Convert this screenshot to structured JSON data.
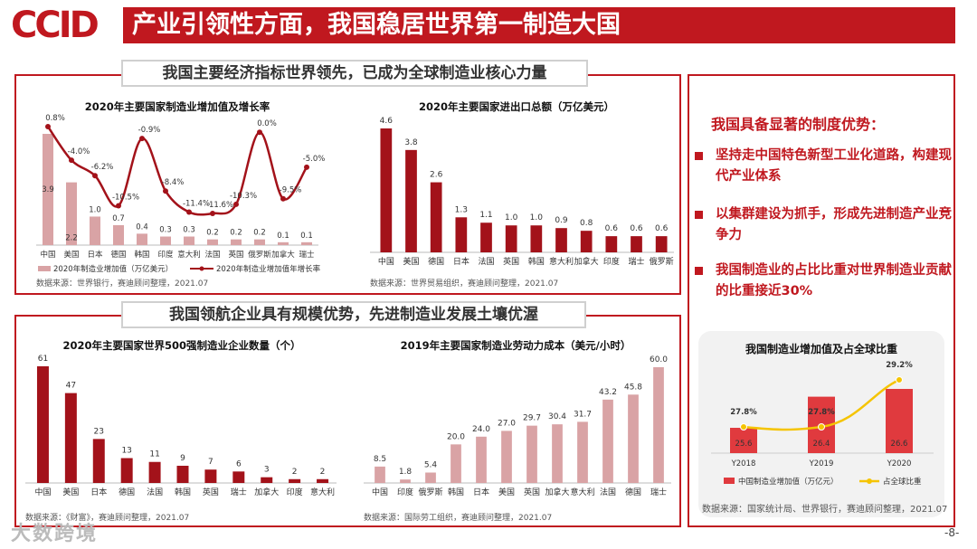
{
  "brand": {
    "logo_text": "CCID",
    "accent": "#c0181f",
    "bar_light": "#d9a3a5"
  },
  "header": {
    "title": "产业引领性方面，我国稳居世界第一制造大国"
  },
  "sections": {
    "top_label": "我国主要经济指标世界领先，已成为全球制造业核心力量",
    "bottom_label": "我国领航企业具有规模优势，先进制造业发展土壤优渥"
  },
  "right_panel": {
    "title": "我国具备显著的制度优势：",
    "bullets": [
      "坚持走中国特色新型工业化道路，构建现代产业体系",
      "以集群建设为抓手，形成先进制造产业竞争力",
      "我国制造业的占比比重对世界制造业贡献的比重接近30%"
    ]
  },
  "page_number": "-8-",
  "watermark": "大数跨境",
  "chart_data": [
    {
      "id": "chart1",
      "type": "bar+line",
      "title": "2020年主要国家制造业增加值及增长率",
      "categories": [
        "中国",
        "美国",
        "日本",
        "德国",
        "韩国",
        "印度",
        "意大利",
        "法国",
        "英国",
        "俄罗斯",
        "加拿大",
        "瑞士"
      ],
      "series": [
        {
          "name": "2020年制造业增加值（万亿美元）",
          "type": "bar",
          "values": [
            3.9,
            2.2,
            1.0,
            0.7,
            0.4,
            0.3,
            0.3,
            0.2,
            0.2,
            0.2,
            0.1,
            0.1
          ],
          "labels": [
            "3.9",
            "2.2",
            "1.0",
            "0.7",
            "0.4",
            "0.3",
            "0.3",
            "0.2",
            "0.2",
            "0.2",
            "0.1",
            "0.1"
          ]
        },
        {
          "name": "2020年制造业增加值年增长率",
          "type": "line",
          "values": [
            0.8,
            -4.0,
            -6.2,
            -10.5,
            -0.9,
            -8.4,
            -11.4,
            -11.6,
            -10.3,
            0.0,
            -9.5,
            -5.0
          ],
          "labels": [
            "0.8%",
            "-4.0%",
            "-6.2%",
            "-10.5%",
            "-0.9%",
            "-8.4%",
            "-11.4%",
            "-11.6%",
            "-10.3%",
            "0.0%",
            "-9.5%",
            "-5.0%"
          ]
        }
      ],
      "source": "数据来源：世界银行，赛迪顾问整理，2021.07"
    },
    {
      "id": "chart2",
      "type": "bar",
      "title": "2020年主要国家进出口总额（万亿美元）",
      "categories": [
        "中国",
        "美国",
        "德国",
        "日本",
        "法国",
        "英国",
        "韩国",
        "意大利",
        "加拿大",
        "印度",
        "瑞士",
        "俄罗斯"
      ],
      "values": [
        4.6,
        3.8,
        2.6,
        1.3,
        1.1,
        1.0,
        1.0,
        0.9,
        0.8,
        0.6,
        0.6,
        0.6
      ],
      "labels": [
        "4.6",
        "3.8",
        "2.6",
        "1.3",
        "1.1",
        "1.0",
        "1.0",
        "0.9",
        "0.8",
        "0.6",
        "0.6",
        "0.6"
      ],
      "source": "数据来源：世界贸易组织，赛迪顾问整理，2021.07"
    },
    {
      "id": "chart3",
      "type": "bar",
      "title": "2020年主要国家世界500强制造业企业数量（个）",
      "categories": [
        "中国",
        "美国",
        "日本",
        "德国",
        "法国",
        "韩国",
        "英国",
        "瑞士",
        "加拿大",
        "印度",
        "意大利"
      ],
      "values": [
        61,
        47,
        23,
        13,
        11,
        9,
        7,
        6,
        3,
        2,
        2
      ],
      "labels": [
        "61",
        "47",
        "23",
        "13",
        "11",
        "9",
        "7",
        "6",
        "3",
        "2",
        "2"
      ],
      "source": "数据来源：《财富》，赛迪顾问整理，2021.07"
    },
    {
      "id": "chart4",
      "type": "bar",
      "title": "2019年主要国家制造业劳动力成本（美元/小时）",
      "categories": [
        "中国",
        "印度",
        "俄罗斯",
        "韩国",
        "日本",
        "美国",
        "英国",
        "加拿大",
        "意大利",
        "法国",
        "德国",
        "瑞士"
      ],
      "values": [
        8.5,
        1.8,
        5.4,
        20.0,
        24.0,
        27.0,
        29.7,
        30.4,
        31.7,
        43.2,
        45.8,
        60.0
      ],
      "labels": [
        "8.5",
        "1.8",
        "5.4",
        "20.0",
        "24.0",
        "27.0",
        "29.7",
        "30.4",
        "31.7",
        "43.2",
        "45.8",
        "60.0"
      ],
      "source": "数据来源：国际劳工组织，赛迪顾问整理，2021.07"
    },
    {
      "id": "chart5",
      "type": "bar+line",
      "title": "我国制造业增加值及占全球比重",
      "categories": [
        "Y2018",
        "Y2019",
        "Y2020"
      ],
      "series": [
        {
          "name": "中国制造业增加值（万亿元）",
          "type": "bar",
          "values": [
            25.6,
            26.4,
            26.6
          ],
          "labels": [
            "25.6",
            "26.4",
            "26.6"
          ]
        },
        {
          "name": "占全球比重",
          "type": "line",
          "values": [
            27.8,
            27.8,
            29.2
          ],
          "labels": [
            "27.8%",
            "27.8%",
            "29.2%"
          ]
        }
      ],
      "source": "数据来源：国家统计局、世界银行，赛迪顾问整理，2021.07"
    }
  ]
}
